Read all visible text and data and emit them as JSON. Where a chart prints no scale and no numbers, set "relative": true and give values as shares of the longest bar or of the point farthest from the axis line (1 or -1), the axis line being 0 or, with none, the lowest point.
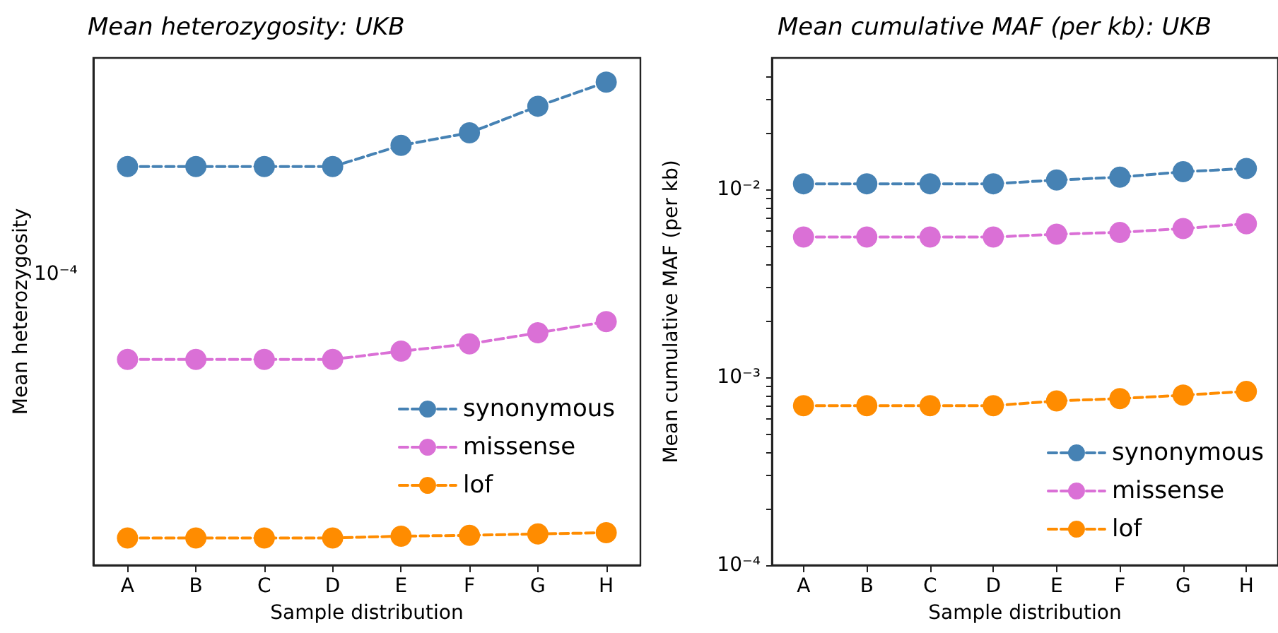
{
  "chart_data": [
    {
      "type": "line",
      "title": "Mean heterozygosity: UKB",
      "xlabel": "Sample distribution",
      "ylabel": "Mean heterozygosity",
      "categories": [
        "A",
        "B",
        "C",
        "D",
        "E",
        "F",
        "G",
        "H"
      ],
      "series": [
        {
          "name": "synonymous",
          "color": "#4682b4",
          "values": [
            0.825,
            0.825,
            0.825,
            0.825,
            0.869,
            0.895,
            0.95,
            1
          ]
        },
        {
          "name": "missense",
          "color": "#da70d6",
          "values": [
            0.426,
            0.426,
            0.426,
            0.426,
            0.443,
            0.458,
            0.481,
            0.504
          ]
        },
        {
          "name": "lof",
          "color": "#ff8c00",
          "values": [
            0.0563,
            0.0563,
            0.0563,
            0.0563,
            0.0601,
            0.0618,
            0.0647,
            0.0673
          ]
        }
      ],
      "relative": true,
      "annotations": [
        "10⁻⁴"
      ],
      "legend": "center right",
      "marker": "circle",
      "line_style": "dashed",
      "grid": false
    },
    {
      "type": "line",
      "title": "Mean cumulative MAF (per kb): UKB",
      "xlabel": "Sample distribution",
      "ylabel": "Mean cumulative MAF (per kb)",
      "categories": [
        "A",
        "B",
        "C",
        "D",
        "E",
        "F",
        "G",
        "H"
      ],
      "series": [
        {
          "name": "synonymous",
          "color": "#4682b4",
          "values": [
            0.0107,
            0.0107,
            0.0107,
            0.0107,
            0.0112,
            0.0116,
            0.0124,
            0.0129
          ]
        },
        {
          "name": "missense",
          "color": "#da70d6",
          "values": [
            0.00557,
            0.00557,
            0.00557,
            0.00557,
            0.00577,
            0.0059,
            0.00618,
            0.00656
          ]
        },
        {
          "name": "lof",
          "color": "#ff8c00",
          "values": [
            0.000706,
            0.000706,
            0.000706,
            0.000706,
            0.000748,
            0.00077,
            0.000803,
            0.000841
          ]
        }
      ],
      "log": "y",
      "ylim": [
        0.0001,
        0.05
      ],
      "yticks": [
        {
          "value": 0.0001,
          "label": "10⁻⁴"
        },
        {
          "value": 0.0002,
          "label": null
        },
        {
          "value": 0.0003,
          "label": null
        },
        {
          "value": 0.0004,
          "label": null
        },
        {
          "value": 0.0005,
          "label": null
        },
        {
          "value": 0.0006,
          "label": null
        },
        {
          "value": 0.0007,
          "label": null
        },
        {
          "value": 0.0008,
          "label": null
        },
        {
          "value": 0.0009,
          "label": null
        },
        {
          "value": 0.001,
          "label": "10⁻³"
        },
        {
          "value": 0.002,
          "label": null
        },
        {
          "value": 0.003,
          "label": null
        },
        {
          "value": 0.004,
          "label": null
        },
        {
          "value": 0.005,
          "label": null
        },
        {
          "value": 0.006,
          "label": null
        },
        {
          "value": 0.007,
          "label": null
        },
        {
          "value": 0.008,
          "label": null
        },
        {
          "value": 0.009,
          "label": null
        },
        {
          "value": 0.01,
          "label": "10⁻²"
        },
        {
          "value": 0.02,
          "label": null
        },
        {
          "value": 0.03,
          "label": null
        },
        {
          "value": 0.04,
          "label": null
        }
      ],
      "legend": "bottom right",
      "marker": "circle",
      "line_style": "dashed",
      "grid": false
    }
  ]
}
